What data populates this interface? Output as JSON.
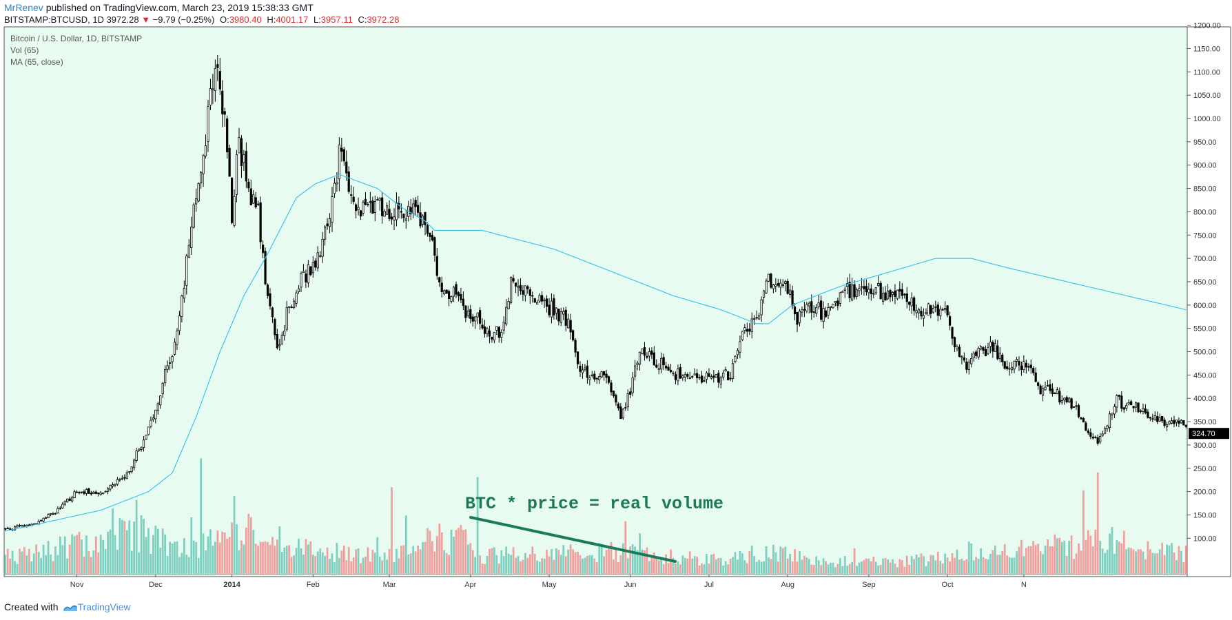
{
  "header": {
    "author": "MrRenev",
    "published_text": "published on TradingView.com, March 23, 2019 15:38:33 GMT",
    "symbol": "BITSTAMP:BTCUSD, 1D",
    "last": "3972.28",
    "change_arrow": "▼",
    "change": "−9.79 (−0.25%)",
    "o_label": "O:",
    "o_value": "3980.40",
    "h_label": "H:",
    "h_value": "4001.17",
    "l_label": "L:",
    "l_value": "3957.11",
    "c_label": "C:",
    "c_value": "3972.28"
  },
  "footer": {
    "created_with": "Created with",
    "brand": "TradingView"
  },
  "colors": {
    "background": "#e8fbf1",
    "candle": "#000000",
    "ma": "#3fc3e8",
    "vol_up": "#7fcfc0",
    "vol_down": "#f0a09d",
    "annotation": "#1b7a5a"
  },
  "chart_data": {
    "type": "candlestick",
    "legend": [
      "Bitcoin / U.S. Dollar, 1D, BITSTAMP",
      "Vol (65)",
      "MA (65, close)"
    ],
    "ylim": [
      0,
      1220
    ],
    "y_ticks": [
      "100.00",
      "150.00",
      "200.00",
      "250.00",
      "300.00",
      "350.00",
      "400.00",
      "450.00",
      "500.00",
      "550.00",
      "600.00",
      "650.00",
      "700.00",
      "750.00",
      "800.00",
      "850.00",
      "900.00",
      "950.00",
      "1000.00",
      "1050.00",
      "1100.00",
      "1150.00",
      "1200.00"
    ],
    "x_ticks": [
      "Nov",
      "Dec",
      "2014",
      "Feb",
      "Mar",
      "Apr",
      "May",
      "Jun",
      "Jul",
      "Aug",
      "Sep",
      "Oct",
      "N"
    ],
    "last_price_label": "324.70",
    "price_anchors": [
      [
        0,
        120
      ],
      [
        12,
        130
      ],
      [
        22,
        160
      ],
      [
        30,
        200
      ],
      [
        40,
        200
      ],
      [
        50,
        230
      ],
      [
        60,
        330
      ],
      [
        70,
        500
      ],
      [
        75,
        650
      ],
      [
        80,
        850
      ],
      [
        85,
        1000
      ],
      [
        88,
        1130
      ],
      [
        92,
        1000
      ],
      [
        95,
        800
      ],
      [
        98,
        950
      ],
      [
        102,
        850
      ],
      [
        106,
        800
      ],
      [
        110,
        620
      ],
      [
        114,
        500
      ],
      [
        118,
        580
      ],
      [
        124,
        650
      ],
      [
        130,
        700
      ],
      [
        136,
        780
      ],
      [
        140,
        920
      ],
      [
        146,
        830
      ],
      [
        150,
        800
      ],
      [
        156,
        810
      ],
      [
        162,
        800
      ],
      [
        168,
        790
      ],
      [
        172,
        800
      ],
      [
        178,
        750
      ],
      [
        182,
        640
      ],
      [
        188,
        620
      ],
      [
        194,
        580
      ],
      [
        200,
        560
      ],
      [
        204,
        540
      ],
      [
        208,
        540
      ],
      [
        212,
        650
      ],
      [
        218,
        630
      ],
      [
        224,
        610
      ],
      [
        230,
        590
      ],
      [
        236,
        560
      ],
      [
        240,
        470
      ],
      [
        244,
        450
      ],
      [
        250,
        450
      ],
      [
        254,
        420
      ],
      [
        258,
        360
      ],
      [
        262,
        420
      ],
      [
        266,
        500
      ],
      [
        270,
        490
      ],
      [
        276,
        470
      ],
      [
        282,
        450
      ],
      [
        290,
        440
      ],
      [
        296,
        445
      ],
      [
        304,
        450
      ],
      [
        310,
        550
      ],
      [
        316,
        580
      ],
      [
        320,
        650
      ],
      [
        328,
        640
      ],
      [
        332,
        560
      ],
      [
        336,
        600
      ],
      [
        340,
        590
      ],
      [
        346,
        580
      ],
      [
        352,
        640
      ],
      [
        358,
        620
      ],
      [
        364,
        640
      ],
      [
        370,
        620
      ],
      [
        376,
        620
      ],
      [
        380,
        610
      ],
      [
        384,
        590
      ],
      [
        390,
        590
      ],
      [
        394,
        580
      ],
      [
        400,
        490
      ],
      [
        404,
        470
      ],
      [
        408,
        500
      ],
      [
        414,
        510
      ],
      [
        418,
        480
      ],
      [
        424,
        470
      ],
      [
        430,
        470
      ],
      [
        434,
        420
      ],
      [
        440,
        410
      ],
      [
        446,
        390
      ],
      [
        450,
        370
      ],
      [
        454,
        330
      ],
      [
        458,
        310
      ],
      [
        462,
        350
      ],
      [
        466,
        400
      ],
      [
        470,
        380
      ],
      [
        476,
        380
      ],
      [
        480,
        360
      ],
      [
        486,
        350
      ],
      [
        492,
        350
      ],
      [
        495,
        345
      ]
    ],
    "ma_anchors": [
      [
        0,
        115
      ],
      [
        40,
        160
      ],
      [
        60,
        200
      ],
      [
        70,
        240
      ],
      [
        80,
        360
      ],
      [
        90,
        500
      ],
      [
        100,
        620
      ],
      [
        110,
        710
      ],
      [
        115,
        760
      ],
      [
        122,
        830
      ],
      [
        130,
        860
      ],
      [
        140,
        880
      ],
      [
        156,
        850
      ],
      [
        166,
        810
      ],
      [
        176,
        780
      ],
      [
        180,
        760
      ],
      [
        200,
        760
      ],
      [
        230,
        720
      ],
      [
        250,
        680
      ],
      [
        270,
        640
      ],
      [
        280,
        620
      ],
      [
        300,
        590
      ],
      [
        315,
        560
      ],
      [
        320,
        560
      ],
      [
        330,
        600
      ],
      [
        350,
        640
      ],
      [
        370,
        670
      ],
      [
        390,
        700
      ],
      [
        405,
        700
      ],
      [
        420,
        680
      ],
      [
        445,
        650
      ],
      [
        470,
        620
      ],
      [
        495,
        590
      ]
    ],
    "volume_anchors": [
      [
        0,
        10
      ],
      [
        40,
        20
      ],
      [
        55,
        25
      ],
      [
        72,
        15
      ],
      [
        80,
        18
      ],
      [
        95,
        25
      ],
      [
        100,
        25
      ],
      [
        130,
        15
      ],
      [
        160,
        10
      ],
      [
        175,
        20
      ],
      [
        190,
        22
      ],
      [
        200,
        10
      ],
      [
        210,
        12
      ],
      [
        240,
        12
      ],
      [
        260,
        14
      ],
      [
        280,
        10
      ],
      [
        300,
        8
      ],
      [
        320,
        15
      ],
      [
        340,
        8
      ],
      [
        380,
        8
      ],
      [
        400,
        12
      ],
      [
        440,
        15
      ],
      [
        460,
        20
      ],
      [
        495,
        12
      ]
    ],
    "volume_spikes": [
      [
        20,
        4
      ],
      [
        30,
        4
      ],
      [
        45,
        40
      ],
      [
        55,
        45
      ],
      [
        78,
        35
      ],
      [
        82,
        60
      ],
      [
        96,
        40
      ],
      [
        156,
        20
      ],
      [
        162,
        48
      ],
      [
        168,
        30
      ],
      [
        182,
        25
      ],
      [
        198,
        60
      ],
      [
        260,
        32
      ],
      [
        266,
        24
      ],
      [
        312,
        12
      ],
      [
        356,
        14
      ],
      [
        404,
        18
      ],
      [
        440,
        22
      ],
      [
        452,
        46
      ],
      [
        458,
        58
      ]
    ],
    "annotation": {
      "text": "BTC * price = real volume",
      "trend_from": [
        197,
        1625
      ],
      "trend_to": [
        282,
        1210
      ]
    }
  }
}
